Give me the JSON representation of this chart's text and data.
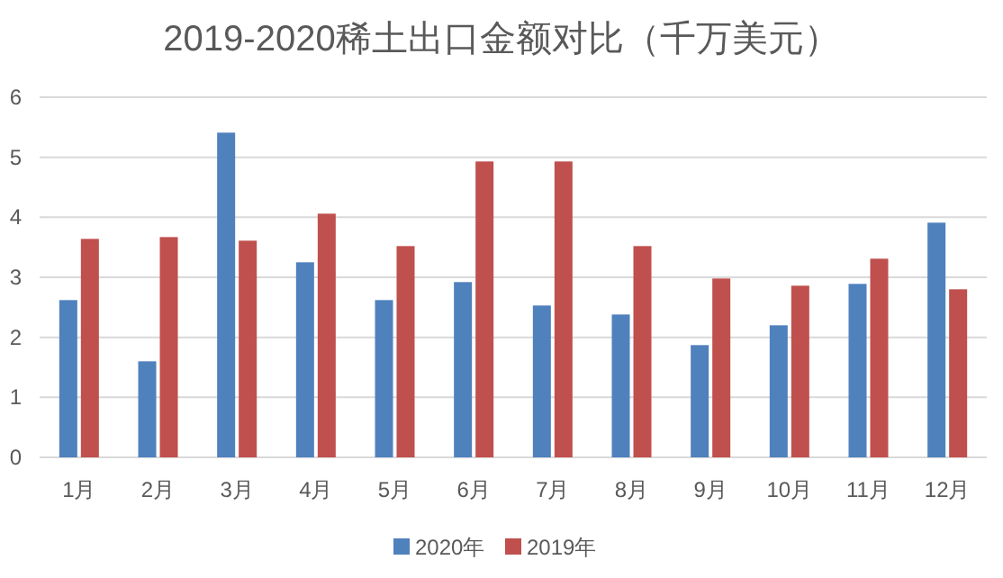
{
  "chart_data": {
    "type": "bar",
    "title": "2019-2020稀土出口金额对比（千万美元）",
    "categories": [
      "1月",
      "2月",
      "3月",
      "4月",
      "5月",
      "6月",
      "7月",
      "8月",
      "9月",
      "10月",
      "11月",
      "12月"
    ],
    "series": [
      {
        "name": "2020年",
        "color": "#4f81bd",
        "values": [
          2.62,
          1.6,
          5.41,
          3.25,
          2.62,
          2.92,
          2.53,
          2.38,
          1.87,
          2.2,
          2.89,
          3.91
        ]
      },
      {
        "name": "2019年",
        "color": "#c0504d",
        "values": [
          3.64,
          3.67,
          3.61,
          4.06,
          3.52,
          4.93,
          4.93,
          3.52,
          2.98,
          2.86,
          3.31,
          2.8
        ]
      }
    ],
    "ylim": [
      0,
      6
    ],
    "yticks": [
      0,
      1,
      2,
      3,
      4,
      5,
      6
    ],
    "grid": "y",
    "legend": "bottom"
  }
}
